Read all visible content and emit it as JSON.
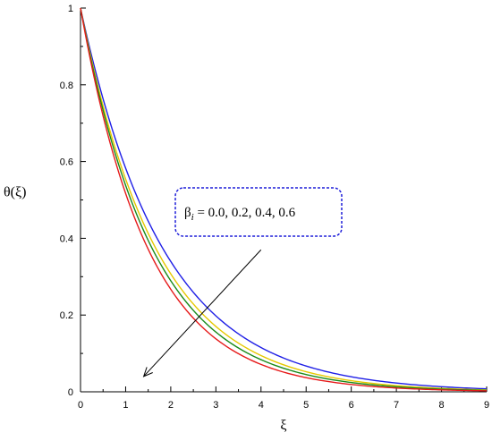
{
  "chart_data": {
    "type": "line",
    "title": "",
    "xlabel": "ξ",
    "ylabel": "θ(ξ)",
    "xlim": [
      0,
      9
    ],
    "ylim": [
      0,
      1
    ],
    "xticks": [
      "0",
      "1",
      "2",
      "3",
      "4",
      "5",
      "6",
      "7",
      "8",
      "9"
    ],
    "yticks": [
      "0",
      "0.2",
      "0.4",
      "0.6",
      "0.8",
      "1"
    ],
    "grid": false,
    "legend": "none",
    "annotation": {
      "symbol": "β",
      "subscript": "i",
      "text": " = 0.0, 0.2, 0.4, 0.6",
      "border_color": "#1f1fd9",
      "arrow_from": [
        4.0,
        0.37
      ],
      "arrow_to": [
        1.4,
        0.04
      ]
    },
    "series": [
      {
        "color": "#1f1fe6",
        "decay_rate": 0.54
      },
      {
        "color": "#e6c800",
        "decay_rate": 0.59
      },
      {
        "color": "#1a8a1a",
        "decay_rate": 0.62
      },
      {
        "color": "#e61a1a",
        "decay_rate": 0.66
      }
    ]
  }
}
